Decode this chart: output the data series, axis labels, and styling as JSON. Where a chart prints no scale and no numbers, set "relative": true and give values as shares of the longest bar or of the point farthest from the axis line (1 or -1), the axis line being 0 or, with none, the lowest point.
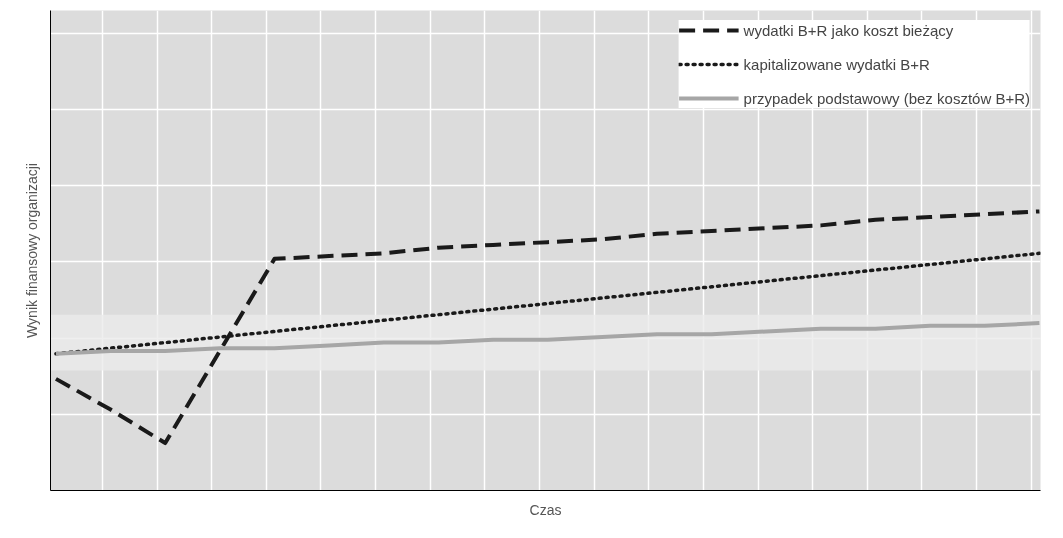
{
  "chart_data": {
    "type": "line",
    "relative": true,
    "xlabel": "Czas",
    "ylabel": "Wynik finansowy organizacji",
    "categories": [
      null,
      null,
      null,
      null,
      null,
      null,
      null,
      null,
      null,
      null,
      null,
      null,
      null,
      null,
      null,
      null,
      null,
      null,
      null
    ],
    "series": [
      {
        "name": "wydatki B+R jako koszt bieżący",
        "color": "#1a1a1a",
        "line_style": "dashed",
        "values": [
          0.4,
          0.29,
          0.17,
          0.5,
          0.83,
          0.84,
          0.85,
          0.87,
          0.88,
          0.89,
          0.9,
          0.92,
          0.93,
          0.94,
          0.95,
          0.97,
          0.98,
          0.99,
          1.0
        ]
      },
      {
        "name": "kapitalizowane wydatki B+R",
        "color": "#1a1a1a",
        "line_style": "dotted",
        "values": [
          0.49,
          0.51,
          0.53,
          0.55,
          0.57,
          0.59,
          0.61,
          0.63,
          0.65,
          0.67,
          0.69,
          0.71,
          0.73,
          0.75,
          0.77,
          0.79,
          0.81,
          0.83,
          0.85
        ]
      },
      {
        "name": "przypadek podstawowy (bez kosztów B+R)",
        "color": "#a6a6a6",
        "line_style": "solid",
        "values": [
          0.49,
          0.5,
          0.5,
          0.51,
          0.51,
          0.52,
          0.53,
          0.53,
          0.54,
          0.54,
          0.55,
          0.56,
          0.56,
          0.57,
          0.58,
          0.58,
          0.59,
          0.59,
          0.6
        ]
      }
    ],
    "bands": [
      {
        "axis": "y",
        "from": 0.43,
        "to": 0.63,
        "color": "#ebebeb"
      }
    ],
    "grid": true,
    "legend": "top right",
    "marker": "none"
  }
}
